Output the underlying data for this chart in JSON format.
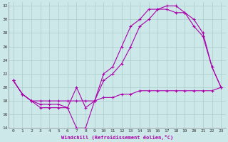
{
  "xlabel": "Windchill (Refroidissement éolien,°C)",
  "xlim": [
    -0.5,
    23.5
  ],
  "ylim": [
    14,
    32.5
  ],
  "xticks": [
    0,
    1,
    2,
    3,
    4,
    5,
    6,
    7,
    8,
    9,
    10,
    11,
    12,
    13,
    14,
    15,
    16,
    17,
    18,
    19,
    20,
    21,
    22,
    23
  ],
  "yticks": [
    14,
    16,
    18,
    20,
    22,
    24,
    26,
    28,
    30,
    32
  ],
  "bg_color": "#cce8e8",
  "line_color": "#aa00aa",
  "grid_color": "#aacccc",
  "line1_x": [
    0,
    1,
    2,
    3,
    4,
    5,
    6,
    7,
    8,
    9,
    10,
    11,
    12,
    13,
    14,
    15,
    16,
    17,
    18,
    19,
    20,
    21,
    22,
    23
  ],
  "line1_y": [
    21,
    19,
    18,
    17,
    17,
    17,
    17,
    14,
    14,
    18,
    22,
    23,
    26,
    29,
    30,
    31.5,
    31.5,
    31.5,
    31,
    31,
    30,
    28,
    23,
    20
  ],
  "line2_x": [
    0,
    1,
    2,
    3,
    4,
    5,
    6,
    7,
    8,
    9,
    10,
    11,
    12,
    13,
    14,
    15,
    16,
    17,
    18,
    19,
    20,
    21,
    22,
    23
  ],
  "line2_y": [
    21,
    19,
    18,
    17.5,
    17.5,
    17.5,
    17,
    20,
    17,
    18,
    21,
    22,
    23.5,
    26,
    29,
    30,
    31.5,
    32,
    32,
    31,
    29,
    27.5,
    23,
    20
  ],
  "line3_x": [
    0,
    1,
    2,
    3,
    4,
    5,
    6,
    7,
    8,
    9,
    10,
    11,
    12,
    13,
    14,
    15,
    16,
    17,
    18,
    19,
    20,
    21,
    22,
    23
  ],
  "line3_y": [
    21,
    19,
    18,
    18,
    18,
    18,
    18,
    18,
    18,
    18,
    18.5,
    18.5,
    19,
    19,
    19.5,
    19.5,
    19.5,
    19.5,
    19.5,
    19.5,
    19.5,
    19.5,
    19.5,
    20
  ]
}
